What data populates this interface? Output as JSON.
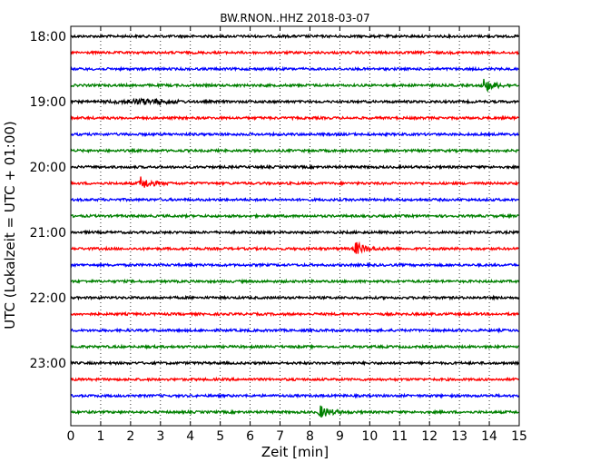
{
  "chart_data": {
    "type": "line",
    "title": "BW.RNON..HHZ 2018-03-07",
    "xlabel": "Zeit  [min]",
    "ylabel": "UTC (Lokalzeit = UTC + 01:00)",
    "xlim": [
      0,
      15
    ],
    "x_ticks": [
      "0",
      "1",
      "2",
      "3",
      "4",
      "5",
      "6",
      "7",
      "8",
      "9",
      "10",
      "11",
      "12",
      "13",
      "14",
      "15"
    ],
    "y_ticks": [
      "18:00",
      "19:00",
      "20:00",
      "21:00",
      "22:00",
      "23:00"
    ],
    "grid": "vertical dotted",
    "trace_colors": [
      "#000000",
      "#ff0000",
      "#0000ff",
      "#008000"
    ],
    "series": [
      {
        "start": "18:00",
        "color": "#000000"
      },
      {
        "start": "18:15",
        "color": "#ff0000"
      },
      {
        "start": "18:30",
        "color": "#0000ff"
      },
      {
        "start": "18:45",
        "color": "#008000",
        "event_min": 13.8
      },
      {
        "start": "19:00",
        "color": "#000000",
        "burst": [
          1.0,
          4.0
        ]
      },
      {
        "start": "19:15",
        "color": "#ff0000"
      },
      {
        "start": "19:30",
        "color": "#0000ff"
      },
      {
        "start": "19:45",
        "color": "#008000"
      },
      {
        "start": "20:00",
        "color": "#000000"
      },
      {
        "start": "20:15",
        "color": "#ff0000",
        "event_min": 2.3
      },
      {
        "start": "20:30",
        "color": "#0000ff"
      },
      {
        "start": "20:45",
        "color": "#008000"
      },
      {
        "start": "21:00",
        "color": "#000000"
      },
      {
        "start": "21:15",
        "color": "#ff0000",
        "event_min": 9.5
      },
      {
        "start": "21:30",
        "color": "#0000ff"
      },
      {
        "start": "21:45",
        "color": "#008000"
      },
      {
        "start": "22:00",
        "color": "#000000"
      },
      {
        "start": "22:15",
        "color": "#ff0000"
      },
      {
        "start": "22:30",
        "color": "#0000ff"
      },
      {
        "start": "22:45",
        "color": "#008000"
      },
      {
        "start": "23:00",
        "color": "#000000"
      },
      {
        "start": "23:15",
        "color": "#ff0000"
      },
      {
        "start": "23:30",
        "color": "#0000ff"
      },
      {
        "start": "23:45",
        "color": "#008000",
        "event_min": 8.3
      }
    ]
  }
}
